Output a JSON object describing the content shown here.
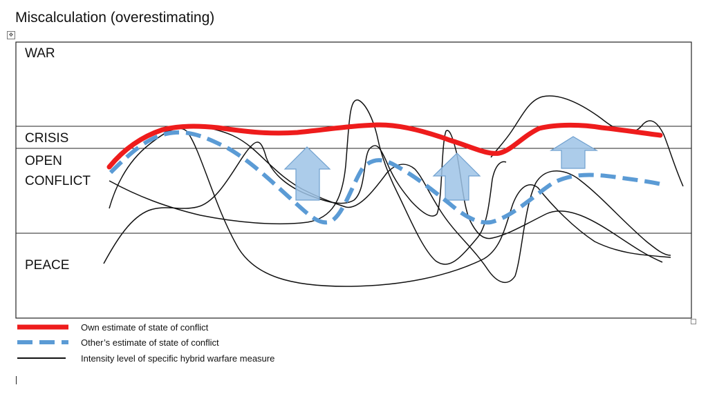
{
  "title": "Miscalculation (overestimating)",
  "zones": {
    "war": "WAR",
    "crisis": "CRISIS",
    "open_conflict_line1": "OPEN",
    "open_conflict_line2": "CONFLICT",
    "peace": "PEACE"
  },
  "legend": {
    "own": {
      "label": "Own estimate of state of conflict",
      "color": "#ee1c1c"
    },
    "other": {
      "label": "Other’s estimate of state of conflict",
      "color": "#5b9bd5"
    },
    "measure": {
      "label": "Intensity level of specific hybrid warfare measure",
      "color": "#111111"
    }
  },
  "arrow_color": "#9dc3e6"
}
